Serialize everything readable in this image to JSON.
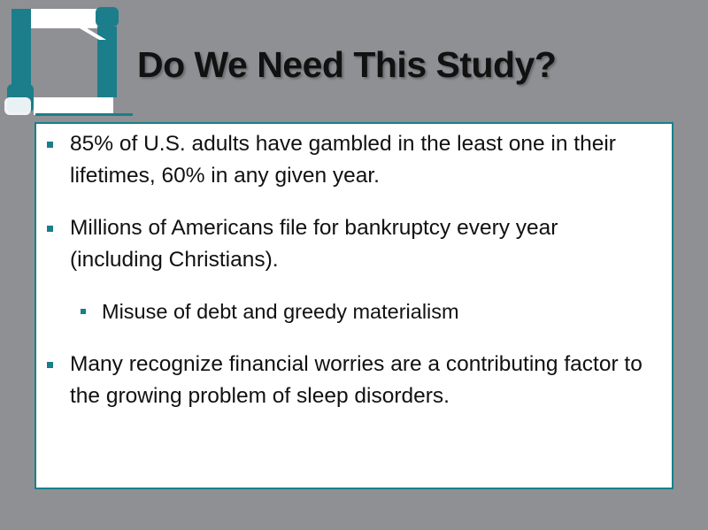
{
  "logo": {
    "icon": "hands-square-logo",
    "colors": {
      "teal": "#1b7e8a",
      "white": "#ffffff"
    }
  },
  "title": "Do We Need This Study?",
  "bullets": [
    {
      "level": 1,
      "lines": [
        "85% of U.S. adults have gambled in the least one in their",
        "lifetimes, 60% in any given year."
      ]
    },
    {
      "level": 1,
      "lines": [
        "Millions of Americans file for bankruptcy every year",
        "(including Christians)."
      ]
    },
    {
      "level": 2,
      "lines": [
        "Misuse of debt and greedy materialism"
      ]
    },
    {
      "level": 1,
      "lines": [
        "Many recognize financial worries are a contributing factor to",
        "the growing problem of sleep disorders."
      ]
    }
  ],
  "colors": {
    "background": "#8f9094",
    "accent": "#1b7e8a"
  }
}
